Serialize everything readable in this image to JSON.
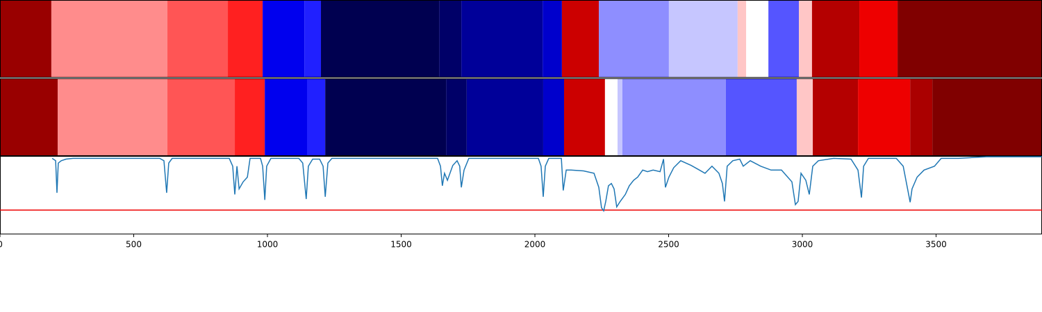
{
  "chart_data": {
    "type": "segments",
    "xlim": [
      0,
      3896
    ],
    "xticks": [
      0,
      500,
      1000,
      1500,
      2000,
      2500,
      3000,
      3500
    ],
    "ylim": [
      0,
      1
    ],
    "tracks": [
      {
        "segments": [
          {
            "start": 0,
            "end": 192,
            "color": "#990000"
          },
          {
            "start": 192,
            "end": 626,
            "color": "#ff8c8c"
          },
          {
            "start": 626,
            "end": 852,
            "color": "#ff5555"
          },
          {
            "start": 852,
            "end": 982,
            "color": "#ff2020"
          },
          {
            "start": 982,
            "end": 1138,
            "color": "#0000ee"
          },
          {
            "start": 1138,
            "end": 1200,
            "color": "#2020ff"
          },
          {
            "start": 1200,
            "end": 1642,
            "color": "#000050"
          },
          {
            "start": 1642,
            "end": 1725,
            "color": "#000068"
          },
          {
            "start": 1725,
            "end": 2029,
            "color": "#000099"
          },
          {
            "start": 2029,
            "end": 2101,
            "color": "#0000cc"
          },
          {
            "start": 2101,
            "end": 2239,
            "color": "#cc0000"
          },
          {
            "start": 2239,
            "end": 2501,
            "color": "#8e8eff"
          },
          {
            "start": 2501,
            "end": 2758,
            "color": "#c6c6ff"
          },
          {
            "start": 2758,
            "end": 2790,
            "color": "#ffc6c6"
          },
          {
            "start": 2790,
            "end": 2873,
            "color": "#ffffff"
          },
          {
            "start": 2873,
            "end": 2987,
            "color": "#5555ff"
          },
          {
            "start": 2987,
            "end": 3036,
            "color": "#ffc6c6"
          },
          {
            "start": 3036,
            "end": 3213,
            "color": "#b40000"
          },
          {
            "start": 3213,
            "end": 3356,
            "color": "#ee0000"
          },
          {
            "start": 3356,
            "end": 3896,
            "color": "#800000"
          }
        ]
      },
      {
        "segments": [
          {
            "start": 0,
            "end": 216,
            "color": "#990000"
          },
          {
            "start": 216,
            "end": 626,
            "color": "#ff8c8c"
          },
          {
            "start": 626,
            "end": 878,
            "color": "#ff5555"
          },
          {
            "start": 878,
            "end": 990,
            "color": "#ff2020"
          },
          {
            "start": 990,
            "end": 1148,
            "color": "#0000ee"
          },
          {
            "start": 1148,
            "end": 1216,
            "color": "#2020ff"
          },
          {
            "start": 1216,
            "end": 1668,
            "color": "#000050"
          },
          {
            "start": 1668,
            "end": 1745,
            "color": "#000068"
          },
          {
            "start": 1745,
            "end": 2031,
            "color": "#000099"
          },
          {
            "start": 2031,
            "end": 2109,
            "color": "#0000cc"
          },
          {
            "start": 2109,
            "end": 2262,
            "color": "#cc0000"
          },
          {
            "start": 2262,
            "end": 2309,
            "color": "#ffffff"
          },
          {
            "start": 2309,
            "end": 2327,
            "color": "#c6c6ff"
          },
          {
            "start": 2327,
            "end": 2714,
            "color": "#8e8eff"
          },
          {
            "start": 2714,
            "end": 2979,
            "color": "#5555ff"
          },
          {
            "start": 2979,
            "end": 3039,
            "color": "#ffc6c6"
          },
          {
            "start": 3039,
            "end": 3208,
            "color": "#b40000"
          },
          {
            "start": 3208,
            "end": 3403,
            "color": "#ee0000"
          },
          {
            "start": 3403,
            "end": 3486,
            "color": "#aa0000"
          },
          {
            "start": 3486,
            "end": 3896,
            "color": "#800000"
          }
        ]
      }
    ],
    "line": {
      "color": "#1f77b4",
      "x": [
        195,
        208,
        213,
        218,
        229,
        247,
        273,
        597,
        613,
        623,
        631,
        644,
        857,
        870,
        878,
        886,
        894,
        909,
        925,
        935,
        974,
        982,
        990,
        997,
        1013,
        1117,
        1132,
        1145,
        1153,
        1169,
        1195,
        1208,
        1216,
        1226,
        1241,
        1636,
        1647,
        1654,
        1662,
        1673,
        1693,
        1709,
        1719,
        1725,
        1735,
        1753,
        2013,
        2023,
        2031,
        2039,
        2052,
        2099,
        2106,
        2117,
        2135,
        2182,
        2221,
        2239,
        2249,
        2257,
        2265,
        2275,
        2286,
        2296,
        2306,
        2319,
        2338,
        2353,
        2369,
        2384,
        2403,
        2421,
        2442,
        2468,
        2481,
        2488,
        2501,
        2519,
        2545,
        2584,
        2610,
        2636,
        2662,
        2688,
        2701,
        2709,
        2719,
        2740,
        2766,
        2779,
        2805,
        2844,
        2883,
        2922,
        2961,
        2974,
        2984,
        2995,
        3013,
        3026,
        3039,
        3060,
        3117,
        3182,
        3208,
        3221,
        3229,
        3247,
        3351,
        3377,
        3403,
        3410,
        3429,
        3455,
        3494,
        3519,
        3584,
        3688,
        3896
      ],
      "values": [
        0.97,
        0.94,
        0.53,
        0.91,
        0.94,
        0.96,
        0.97,
        0.97,
        0.94,
        0.53,
        0.91,
        0.97,
        0.97,
        0.87,
        0.51,
        0.87,
        0.58,
        0.67,
        0.73,
        0.97,
        0.97,
        0.87,
        0.44,
        0.87,
        0.97,
        0.97,
        0.91,
        0.45,
        0.87,
        0.96,
        0.96,
        0.87,
        0.48,
        0.91,
        0.97,
        0.97,
        0.87,
        0.62,
        0.78,
        0.69,
        0.88,
        0.94,
        0.87,
        0.6,
        0.82,
        0.97,
        0.97,
        0.87,
        0.48,
        0.87,
        0.97,
        0.97,
        0.56,
        0.82,
        0.82,
        0.81,
        0.78,
        0.6,
        0.34,
        0.3,
        0.42,
        0.62,
        0.65,
        0.58,
        0.35,
        0.42,
        0.51,
        0.62,
        0.69,
        0.73,
        0.82,
        0.8,
        0.82,
        0.8,
        0.96,
        0.6,
        0.73,
        0.85,
        0.94,
        0.88,
        0.83,
        0.78,
        0.87,
        0.78,
        0.65,
        0.42,
        0.87,
        0.94,
        0.96,
        0.87,
        0.94,
        0.87,
        0.82,
        0.82,
        0.67,
        0.38,
        0.42,
        0.78,
        0.69,
        0.51,
        0.87,
        0.94,
        0.97,
        0.96,
        0.82,
        0.47,
        0.87,
        0.97,
        0.97,
        0.87,
        0.41,
        0.58,
        0.73,
        0.82,
        0.87,
        0.97,
        0.97,
        0.99,
        0.99
      ]
    },
    "threshold": 0.31,
    "threshold_color": "#ee0000"
  }
}
